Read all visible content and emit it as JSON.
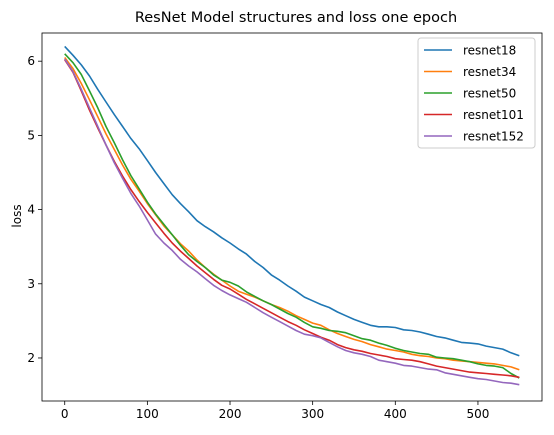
{
  "chart_data": {
    "type": "line",
    "title": "ResNet Model structures and loss one epoch",
    "xlabel": "",
    "ylabel": "loss",
    "xlim": [
      -27.5,
      577.5
    ],
    "ylim": [
      1.42,
      6.38
    ],
    "xticks": [
      0,
      100,
      200,
      300,
      400,
      500
    ],
    "yticks": [
      2,
      3,
      4,
      5,
      6
    ],
    "grid": false,
    "legend_position": "top-right",
    "series": [
      {
        "name": "resnet18",
        "color": "#1f77b4",
        "x": [
          0,
          10,
          20,
          30,
          40,
          50,
          60,
          70,
          80,
          90,
          100,
          110,
          120,
          130,
          140,
          150,
          160,
          170,
          180,
          190,
          200,
          210,
          220,
          230,
          240,
          250,
          260,
          270,
          280,
          290,
          300,
          310,
          320,
          330,
          340,
          350,
          360,
          370,
          380,
          390,
          400,
          410,
          420,
          430,
          440,
          450,
          460,
          470,
          480,
          490,
          500,
          510,
          520,
          530,
          540,
          550
        ],
        "y": [
          6.2,
          6.08,
          5.95,
          5.8,
          5.62,
          5.45,
          5.28,
          5.12,
          4.96,
          4.82,
          4.66,
          4.5,
          4.35,
          4.2,
          4.08,
          3.97,
          3.85,
          3.77,
          3.7,
          3.62,
          3.55,
          3.47,
          3.4,
          3.3,
          3.22,
          3.12,
          3.05,
          2.97,
          2.9,
          2.82,
          2.77,
          2.72,
          2.68,
          2.62,
          2.57,
          2.52,
          2.48,
          2.44,
          2.42,
          2.42,
          2.41,
          2.38,
          2.37,
          2.35,
          2.32,
          2.29,
          2.27,
          2.24,
          2.21,
          2.2,
          2.19,
          2.16,
          2.14,
          2.12,
          2.07,
          2.03
        ]
      },
      {
        "name": "resnet34",
        "color": "#ff7f0e",
        "x": [
          0,
          10,
          20,
          30,
          40,
          50,
          60,
          70,
          80,
          90,
          100,
          110,
          120,
          130,
          140,
          150,
          160,
          170,
          180,
          190,
          200,
          210,
          220,
          230,
          240,
          250,
          260,
          270,
          280,
          290,
          300,
          310,
          320,
          330,
          340,
          350,
          360,
          370,
          380,
          390,
          400,
          410,
          420,
          430,
          440,
          450,
          460,
          470,
          480,
          490,
          500,
          510,
          520,
          530,
          540,
          550
        ],
        "y": [
          6.05,
          5.9,
          5.7,
          5.48,
          5.25,
          5.02,
          4.81,
          4.6,
          4.41,
          4.25,
          4.08,
          3.93,
          3.78,
          3.66,
          3.54,
          3.44,
          3.32,
          3.22,
          3.13,
          3.05,
          2.97,
          2.9,
          2.86,
          2.82,
          2.77,
          2.72,
          2.68,
          2.63,
          2.57,
          2.52,
          2.47,
          2.44,
          2.38,
          2.33,
          2.29,
          2.25,
          2.22,
          2.18,
          2.15,
          2.12,
          2.1,
          2.08,
          2.05,
          2.03,
          2.02,
          2.0,
          1.99,
          1.97,
          1.96,
          1.95,
          1.94,
          1.93,
          1.92,
          1.9,
          1.88,
          1.84
        ]
      },
      {
        "name": "resnet50",
        "color": "#2ca02c",
        "x": [
          0,
          10,
          20,
          30,
          40,
          50,
          60,
          70,
          80,
          90,
          100,
          110,
          120,
          130,
          140,
          150,
          160,
          170,
          180,
          190,
          200,
          210,
          220,
          230,
          240,
          250,
          260,
          270,
          280,
          290,
          300,
          310,
          320,
          330,
          340,
          350,
          360,
          370,
          380,
          390,
          400,
          410,
          420,
          430,
          440,
          450,
          460,
          470,
          480,
          490,
          500,
          510,
          520,
          530,
          540,
          550
        ],
        "y": [
          6.1,
          5.98,
          5.82,
          5.6,
          5.37,
          5.12,
          4.9,
          4.67,
          4.46,
          4.28,
          4.1,
          3.94,
          3.8,
          3.66,
          3.52,
          3.39,
          3.3,
          3.22,
          3.12,
          3.05,
          3.02,
          2.97,
          2.89,
          2.83,
          2.77,
          2.72,
          2.66,
          2.6,
          2.55,
          2.48,
          2.42,
          2.4,
          2.37,
          2.36,
          2.34,
          2.3,
          2.26,
          2.24,
          2.2,
          2.17,
          2.13,
          2.1,
          2.08,
          2.06,
          2.05,
          2.01,
          2.0,
          1.99,
          1.97,
          1.95,
          1.92,
          1.9,
          1.89,
          1.87,
          1.79,
          1.73
        ]
      },
      {
        "name": "resnet101",
        "color": "#d62728",
        "x": [
          0,
          10,
          20,
          30,
          40,
          50,
          60,
          70,
          80,
          90,
          100,
          110,
          120,
          130,
          140,
          150,
          160,
          170,
          180,
          190,
          200,
          210,
          220,
          230,
          240,
          250,
          260,
          270,
          280,
          290,
          300,
          310,
          320,
          330,
          340,
          350,
          360,
          370,
          380,
          390,
          400,
          410,
          420,
          430,
          440,
          450,
          460,
          470,
          480,
          490,
          500,
          510,
          520,
          530,
          540,
          550
        ],
        "y": [
          6.02,
          5.85,
          5.6,
          5.34,
          5.1,
          4.87,
          4.65,
          4.45,
          4.27,
          4.11,
          3.96,
          3.82,
          3.68,
          3.55,
          3.44,
          3.34,
          3.24,
          3.15,
          3.06,
          2.98,
          2.93,
          2.86,
          2.79,
          2.73,
          2.67,
          2.61,
          2.55,
          2.49,
          2.44,
          2.38,
          2.33,
          2.28,
          2.24,
          2.18,
          2.14,
          2.11,
          2.09,
          2.06,
          2.04,
          2.02,
          1.99,
          1.98,
          1.97,
          1.95,
          1.92,
          1.89,
          1.87,
          1.85,
          1.83,
          1.81,
          1.8,
          1.79,
          1.78,
          1.77,
          1.76,
          1.74
        ]
      },
      {
        "name": "resnet152",
        "color": "#9467bd",
        "x": [
          0,
          10,
          20,
          30,
          40,
          50,
          60,
          70,
          80,
          90,
          100,
          110,
          120,
          130,
          140,
          150,
          160,
          170,
          180,
          190,
          200,
          210,
          220,
          230,
          240,
          250,
          260,
          270,
          280,
          290,
          300,
          310,
          320,
          330,
          340,
          350,
          360,
          370,
          380,
          390,
          400,
          410,
          420,
          430,
          440,
          450,
          460,
          470,
          480,
          490,
          500,
          510,
          520,
          530,
          540,
          550
        ],
        "y": [
          6.03,
          5.86,
          5.62,
          5.37,
          5.12,
          4.87,
          4.63,
          4.42,
          4.22,
          4.05,
          3.86,
          3.67,
          3.55,
          3.45,
          3.33,
          3.24,
          3.16,
          3.07,
          2.98,
          2.91,
          2.85,
          2.8,
          2.75,
          2.68,
          2.61,
          2.55,
          2.49,
          2.43,
          2.37,
          2.32,
          2.3,
          2.27,
          2.21,
          2.15,
          2.1,
          2.07,
          2.05,
          2.02,
          1.97,
          1.95,
          1.93,
          1.9,
          1.89,
          1.87,
          1.85,
          1.84,
          1.8,
          1.78,
          1.76,
          1.74,
          1.72,
          1.71,
          1.69,
          1.67,
          1.66,
          1.64
        ]
      }
    ]
  }
}
